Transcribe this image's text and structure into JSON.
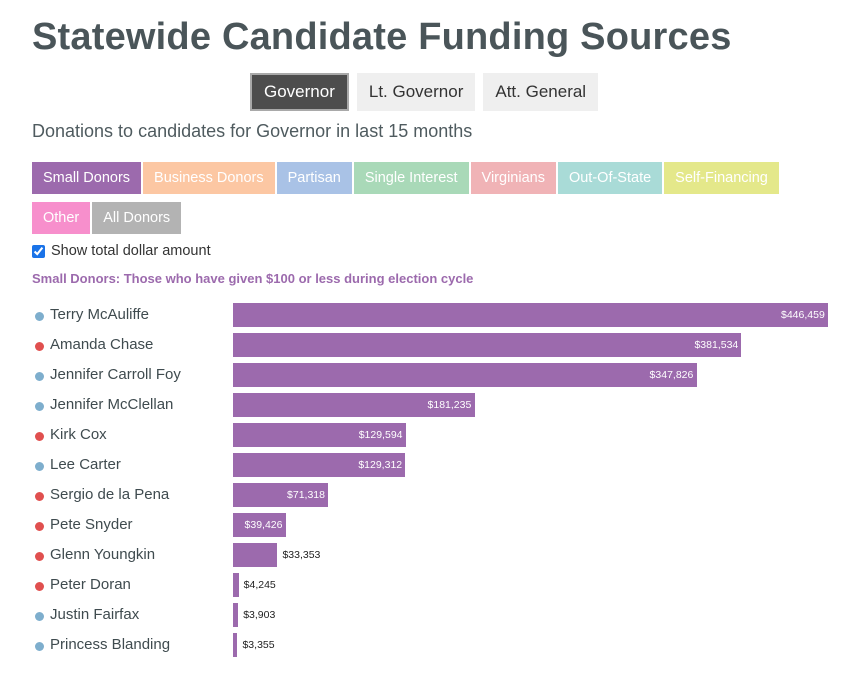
{
  "title": "Statewide Candidate Funding Sources",
  "office_tabs": [
    {
      "label": "Governor",
      "active": true
    },
    {
      "label": "Lt. Governor",
      "active": false
    },
    {
      "label": "Att. General",
      "active": false
    }
  ],
  "subtitle": "Donations to candidates for Governor in last 15 months",
  "donor_tabs": [
    {
      "label": "Small Donors",
      "color": "#9c6aad",
      "active": true
    },
    {
      "label": "Business Donors",
      "color": "#fcc7a3",
      "active": false
    },
    {
      "label": "Partisan",
      "color": "#a9c2e6",
      "active": false
    },
    {
      "label": "Single Interest",
      "color": "#a9d9b8",
      "active": false
    },
    {
      "label": "Virginians",
      "color": "#f0b3b6",
      "active": false
    },
    {
      "label": "Out-Of-State",
      "color": "#a9dbd7",
      "active": false
    },
    {
      "label": "Self-Financing",
      "color": "#e4e88a",
      "active": false
    },
    {
      "label": "Other",
      "color": "#f78fcc",
      "active": false
    },
    {
      "label": "All Donors",
      "color": "#b3b3b3",
      "active": false
    }
  ],
  "show_total_label": "Show total dollar amount",
  "show_total_checked": true,
  "definition": "Small Donors: Those who have given $100 or less during election cycle",
  "colors": {
    "bar": "#9c6aad",
    "dem": "#7eaecd",
    "rep": "#e0504f"
  },
  "chart_data": {
    "type": "bar",
    "orientation": "horizontal",
    "series_name": "Small Donors",
    "categories": [
      "Terry McAuliffe",
      "Amanda Chase",
      "Jennifer Carroll Foy",
      "Jennifer McClellan",
      "Kirk Cox",
      "Lee Carter",
      "Sergio de la Pena",
      "Pete Snyder",
      "Glenn Youngkin",
      "Peter Doran",
      "Justin Fairfax",
      "Princess Blanding"
    ],
    "values": [
      446459,
      381534,
      347826,
      181235,
      129594,
      129312,
      71318,
      39426,
      33353,
      4245,
      3903,
      3355
    ],
    "value_labels": [
      "$446,459",
      "$381,534",
      "$347,826",
      "$181,235",
      "$129,594",
      "$129,312",
      "$71,318",
      "$39,426",
      "$33,353",
      "$4,245",
      "$3,903",
      "$3,355"
    ],
    "party": [
      "dem",
      "rep",
      "dem",
      "dem",
      "rep",
      "dem",
      "rep",
      "rep",
      "rep",
      "rep",
      "dem",
      "dem"
    ],
    "xlim": [
      0,
      446459
    ]
  }
}
